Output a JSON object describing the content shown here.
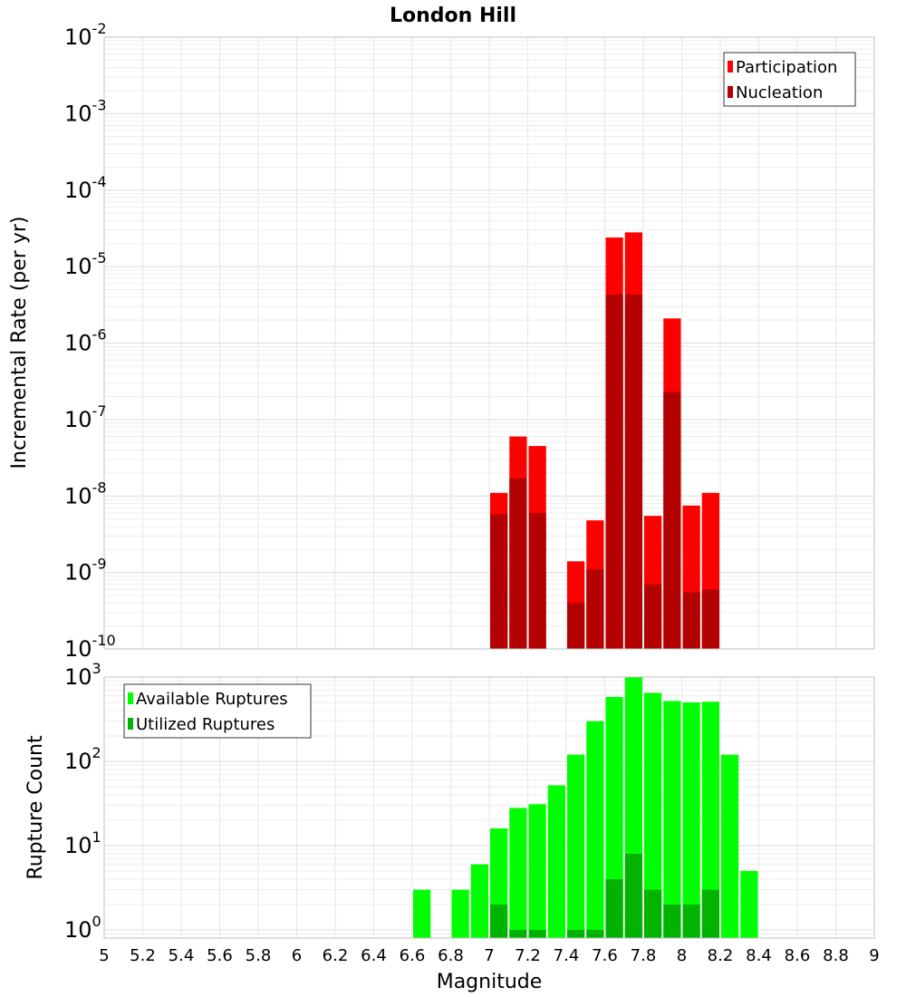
{
  "chart_data": [
    {
      "type": "bar",
      "title": "London Hill",
      "ylabel": "Incremental Rate (per yr)",
      "yscale": "log",
      "ylim": [
        1e-10,
        0.01
      ],
      "xlim": [
        5,
        9
      ],
      "grid": true,
      "legend_position": "top-right",
      "y_ticks": [
        {
          "value": 1e-10,
          "base": "10",
          "exp": "-10"
        },
        {
          "value": 1e-09,
          "base": "10",
          "exp": "-9"
        },
        {
          "value": 1e-08,
          "base": "10",
          "exp": "-8"
        },
        {
          "value": 1e-07,
          "base": "10",
          "exp": "-7"
        },
        {
          "value": 1e-06,
          "base": "10",
          "exp": "-6"
        },
        {
          "value": 1e-05,
          "base": "10",
          "exp": "-5"
        },
        {
          "value": 0.0001,
          "base": "10",
          "exp": "-4"
        },
        {
          "value": 0.001,
          "base": "10",
          "exp": "-3"
        },
        {
          "value": 0.01,
          "base": "10",
          "exp": "-2"
        }
      ],
      "bin_width": 0.1,
      "series": [
        {
          "name": "Participation",
          "color": "#ff0000",
          "x": [
            7.05,
            7.15,
            7.25,
            7.45,
            7.55,
            7.65,
            7.75,
            7.85,
            7.95,
            8.05,
            8.15
          ],
          "values": [
            1.1e-08,
            6e-08,
            4.5e-08,
            1.4e-09,
            4.8e-09,
            2.4e-05,
            2.8e-05,
            5.5e-09,
            2.1e-06,
            7.5e-09,
            1.1e-08
          ]
        },
        {
          "name": "Nucleation",
          "color": "#b30000",
          "x": [
            7.05,
            7.15,
            7.25,
            7.45,
            7.55,
            7.65,
            7.75,
            7.85,
            7.95,
            8.05,
            8.15
          ],
          "values": [
            5.8e-09,
            1.7e-08,
            6e-09,
            4e-10,
            1.1e-09,
            4.3e-06,
            4.3e-06,
            7e-10,
            2.3e-07,
            5.5e-10,
            6e-10
          ]
        }
      ]
    },
    {
      "type": "bar",
      "ylabel": "Rupture Count",
      "xlabel": "Magnitude",
      "yscale": "log",
      "ylim": [
        0.8,
        1000
      ],
      "xlim": [
        5,
        9
      ],
      "grid": true,
      "legend_position": "top-left",
      "x_ticks": [
        "5",
        "5.2",
        "5.4",
        "5.6",
        "5.8",
        "6",
        "6.2",
        "6.4",
        "6.6",
        "6.8",
        "7",
        "7.2",
        "7.4",
        "7.6",
        "7.8",
        "8",
        "8.2",
        "8.4",
        "8.6",
        "8.8",
        "9"
      ],
      "y_ticks": [
        {
          "value": 1,
          "base": "10",
          "exp": "0"
        },
        {
          "value": 10,
          "base": "10",
          "exp": "1"
        },
        {
          "value": 100,
          "base": "10",
          "exp": "2"
        },
        {
          "value": 1000,
          "base": "10",
          "exp": "3"
        }
      ],
      "bin_width": 0.1,
      "series": [
        {
          "name": "Available Ruptures",
          "color": "#00ff00",
          "x": [
            6.65,
            6.85,
            6.95,
            7.05,
            7.15,
            7.25,
            7.35,
            7.45,
            7.55,
            7.65,
            7.75,
            7.85,
            7.95,
            8.05,
            8.15,
            8.25,
            8.35
          ],
          "values": [
            3,
            3,
            6,
            16,
            28,
            31,
            52,
            120,
            300,
            580,
            1000,
            650,
            520,
            500,
            510,
            120,
            5
          ]
        },
        {
          "name": "Utilized Ruptures",
          "color": "#00b300",
          "x": [
            7.05,
            7.15,
            7.25,
            7.45,
            7.55,
            7.65,
            7.75,
            7.85,
            7.95,
            8.05,
            8.15
          ],
          "values": [
            2,
            1,
            1,
            1,
            1,
            4,
            8,
            3,
            2,
            2,
            3
          ]
        }
      ]
    }
  ]
}
